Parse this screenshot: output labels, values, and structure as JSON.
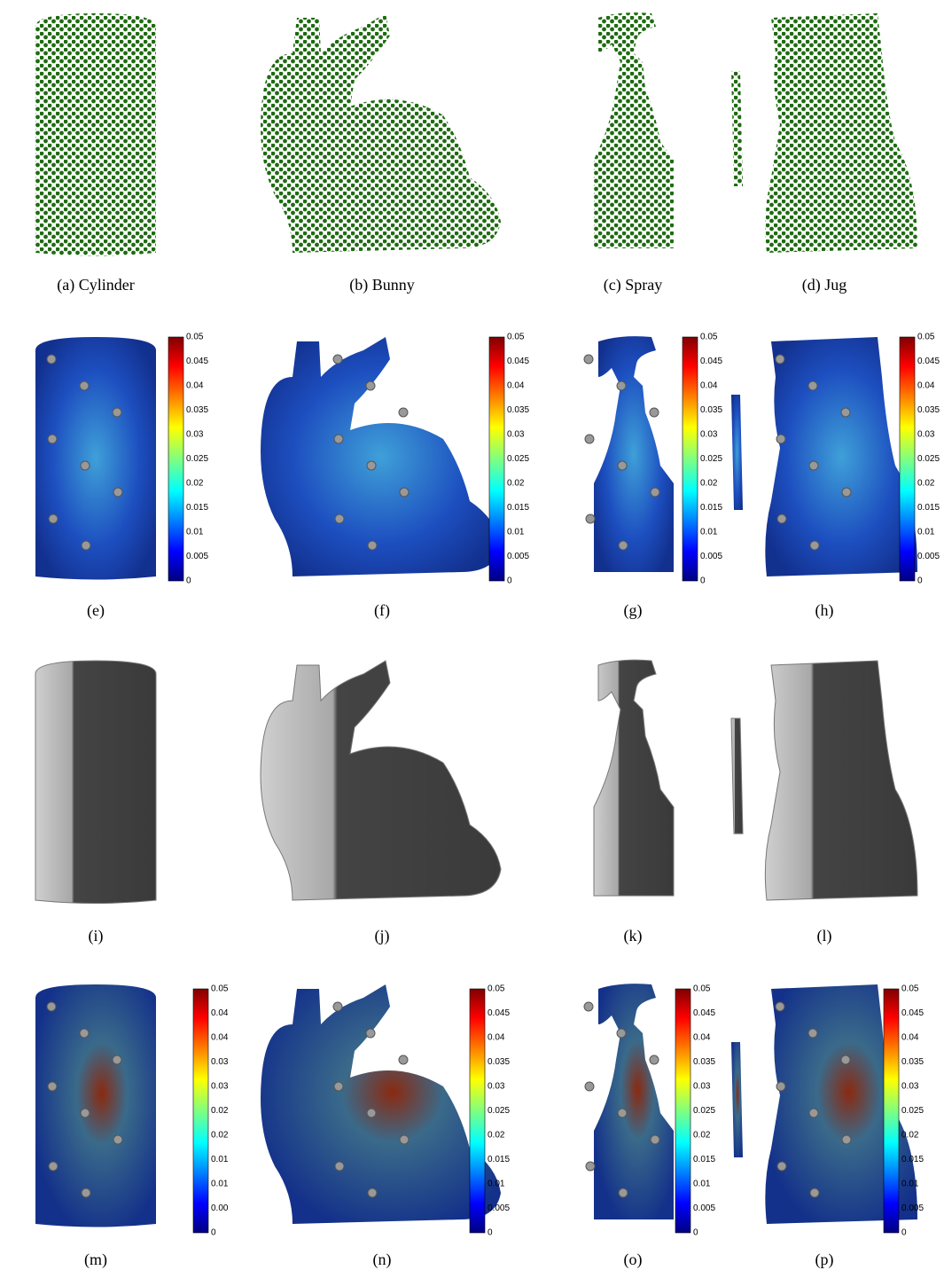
{
  "figure": {
    "panels": [
      {
        "caption": "(a) Cylinder"
      },
      {
        "caption": "(b) Bunny"
      },
      {
        "caption": "(c) Spray"
      },
      {
        "caption": "(d) Jug"
      },
      {
        "caption": "(e)",
        "colorbar": [
          "0.05",
          "0.045",
          "0.04",
          "0.035",
          "0.03",
          "0.025",
          "0.02",
          "0.015",
          "0.01",
          "0.005",
          "0"
        ]
      },
      {
        "caption": "(f)",
        "colorbar": [
          "0.05",
          "0.045",
          "0.04",
          "0.035",
          "0.03",
          "0.025",
          "0.02",
          "0.015",
          "0.01",
          "0.005",
          "0"
        ]
      },
      {
        "caption": "(g)",
        "colorbar": [
          "0.05",
          "0.045",
          "0.04",
          "0.035",
          "0.03",
          "0.025",
          "0.02",
          "0.015",
          "0.01",
          "0.005",
          "0"
        ]
      },
      {
        "caption": "(h)",
        "colorbar": [
          "0.05",
          "0.045",
          "0.04",
          "0.035",
          "0.03",
          "0.025",
          "0.02",
          "0.015",
          "0.01",
          "0.005",
          "0"
        ]
      },
      {
        "caption": "(i)"
      },
      {
        "caption": "(j)"
      },
      {
        "caption": "(k)"
      },
      {
        "caption": "(l)"
      },
      {
        "caption": "(m)",
        "colorbar": [
          "0.05",
          "0.04",
          "0.04",
          "0.03",
          "0.03",
          "0.02",
          "0.02",
          "0.01",
          "0.01",
          "0.00",
          "0"
        ]
      },
      {
        "caption": "(n)",
        "colorbar": [
          "0.05",
          "0.045",
          "0.04",
          "0.035",
          "0.03",
          "0.025",
          "0.02",
          "0.015",
          "0.01",
          "0.005",
          "0"
        ]
      },
      {
        "caption": "(o)",
        "colorbar": [
          "0.05",
          "0.045",
          "0.04",
          "0.035",
          "0.03",
          "0.025",
          "0.02",
          "0.015",
          "0.01",
          "0.005",
          "0"
        ]
      },
      {
        "caption": "(p)",
        "colorbar": [
          "0.05",
          "0.045",
          "0.04",
          "0.035",
          "0.03",
          "0.025",
          "0.02",
          "0.015",
          "0.01",
          "0.005",
          "0"
        ]
      }
    ]
  }
}
